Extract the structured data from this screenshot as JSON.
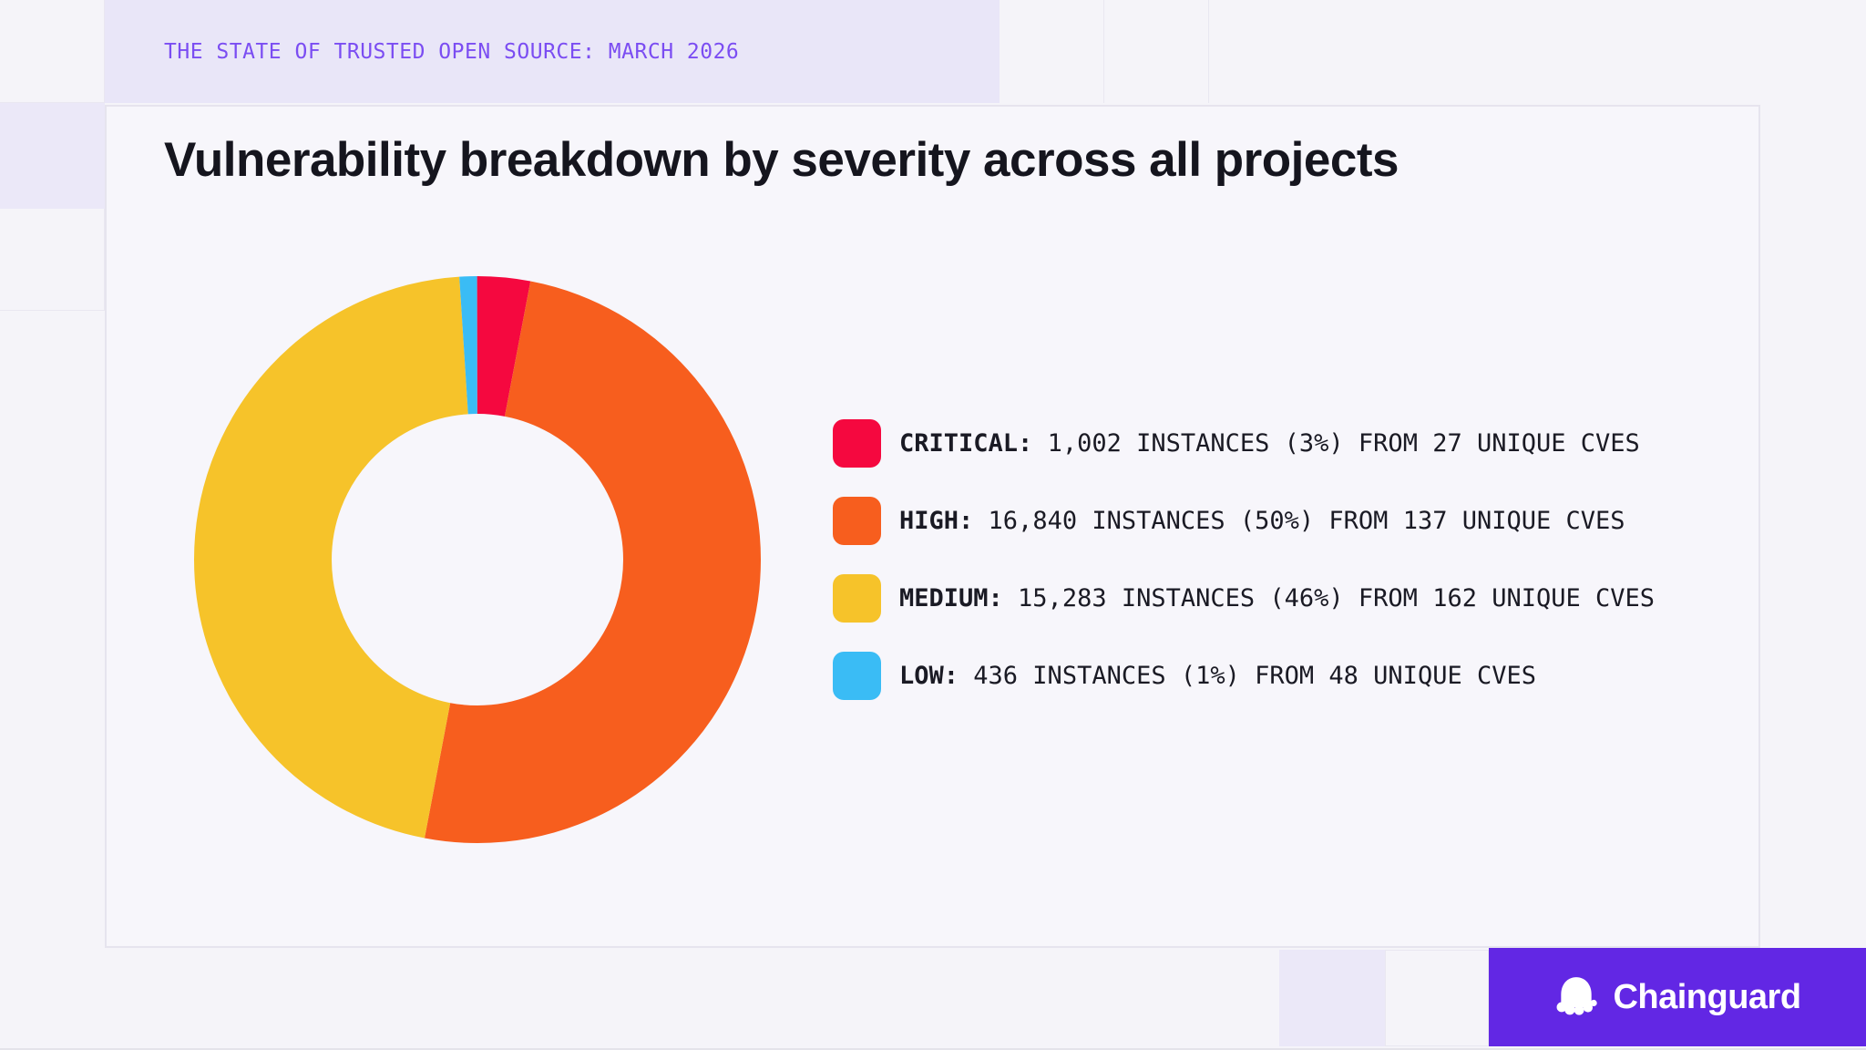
{
  "header": {
    "eyebrow": "THE STATE OF TRUSTED OPEN SOURCE: MARCH 2026"
  },
  "brand": {
    "name": "Chainguard",
    "icon": "chainguard-octopus-icon"
  },
  "colors": {
    "page_bg": "#F5F4F9",
    "card_bg": "#F7F6FB",
    "lavender_block": "#EBE8F8",
    "header_band": "#E9E6F8",
    "grid_line": "#E9E7F1",
    "eyebrow_text": "#7B4DF2",
    "title_text": "#15151E",
    "legend_text": "#1A1A24",
    "brand_box": "#6227E4",
    "critical": "#F5083F",
    "high": "#F75E1E",
    "medium": "#F6C32A",
    "low": "#3ABCF5"
  },
  "chart_data": {
    "type": "pie",
    "variant": "donut",
    "title": "Vulnerability breakdown by severity across all projects",
    "start_angle_deg": 0,
    "direction": "clockwise",
    "inner_radius_ratio": 0.52,
    "legend_position": "right",
    "series": [
      {
        "name": "CRITICAL",
        "instances": 1002,
        "percent": 3,
        "unique_cves": 27,
        "color": "#F5083F",
        "legend_text": "1,002 INSTANCES (3%) FROM 27 UNIQUE CVES"
      },
      {
        "name": "HIGH",
        "instances": 16840,
        "percent": 50,
        "unique_cves": 137,
        "color": "#F75E1E",
        "legend_text": "16,840 INSTANCES (50%) FROM 137 UNIQUE CVES"
      },
      {
        "name": "MEDIUM",
        "instances": 15283,
        "percent": 46,
        "unique_cves": 162,
        "color": "#F6C32A",
        "legend_text": "15,283 INSTANCES (46%) FROM 162 UNIQUE CVES"
      },
      {
        "name": "LOW",
        "instances": 436,
        "percent": 1,
        "unique_cves": 48,
        "color": "#3ABCF5",
        "legend_text": "436 INSTANCES (1%) FROM 48 UNIQUE CVES"
      }
    ]
  }
}
